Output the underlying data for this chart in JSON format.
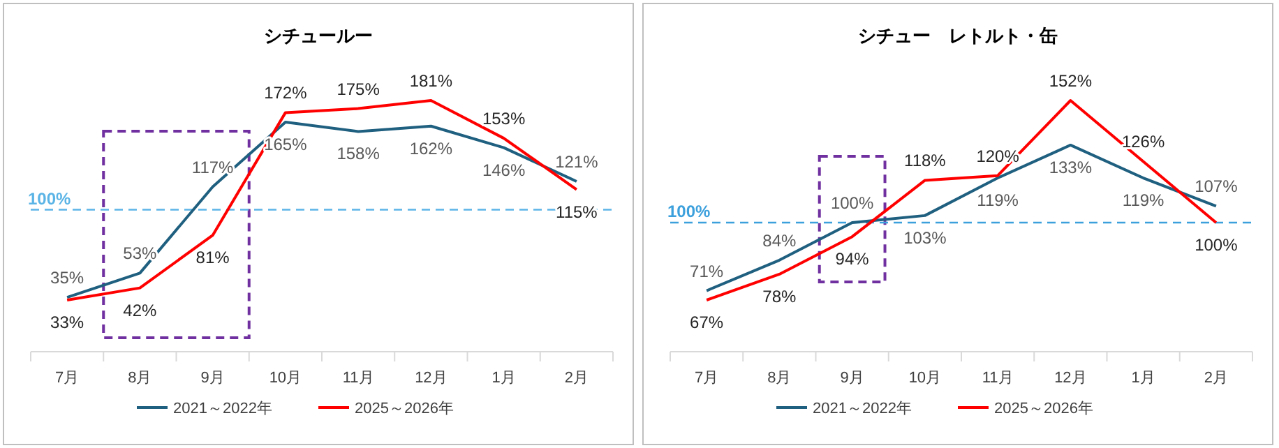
{
  "chart_data": [
    {
      "type": "line",
      "title": "シチュールー",
      "categories": [
        "7月",
        "8月",
        "9月",
        "10月",
        "11月",
        "12月",
        "1月",
        "2月"
      ],
      "grid": false,
      "legend": "bottom",
      "marker": "none",
      "line_style": "solid",
      "series": [
        {
          "name": "2021～2022年",
          "color": "#1f5f7f",
          "values": [
            35,
            53,
            117,
            165,
            158,
            162,
            146,
            121
          ],
          "value_labels": [
            "35%",
            "53%",
            "117%",
            "165%",
            "158%",
            "162%",
            "146%",
            "121%"
          ]
        },
        {
          "name": "2025～2026年",
          "color": "#ff0000",
          "values": [
            33,
            42,
            81,
            172,
            175,
            181,
            153,
            115
          ],
          "value_labels": [
            "33%",
            "42%",
            "81%",
            "172%",
            "175%",
            "181%",
            "153%",
            "115%"
          ]
        }
      ],
      "ref_lines": [
        {
          "axis": "y",
          "value": 100,
          "label": "100%",
          "color": "#5bb4e6",
          "line_style": "dashed"
        }
      ]
    },
    {
      "type": "line",
      "title": "シチュー　レトルト・缶",
      "categories": [
        "7月",
        "8月",
        "9月",
        "10月",
        "11月",
        "12月",
        "1月",
        "2月"
      ],
      "grid": false,
      "legend": "bottom",
      "marker": "none",
      "line_style": "solid",
      "series": [
        {
          "name": "2021～2022年",
          "color": "#1f5f7f",
          "values": [
            71,
            84,
            100,
            103,
            119,
            133,
            119,
            107
          ],
          "value_labels": [
            "71%",
            "84%",
            "100%",
            "103%",
            "119%",
            "133%",
            "119%",
            "107%"
          ]
        },
        {
          "name": "2025～2026年",
          "color": "#ff0000",
          "values": [
            67,
            78,
            94,
            118,
            120,
            152,
            126,
            100
          ],
          "value_labels": [
            "67%",
            "78%",
            "94%",
            "118%",
            "120%",
            "152%",
            "126%",
            "100%"
          ]
        }
      ],
      "ref_lines": [
        {
          "axis": "y",
          "value": 100,
          "label": "100%",
          "color": "#3ca0dc",
          "line_style": "dashed"
        }
      ]
    }
  ]
}
